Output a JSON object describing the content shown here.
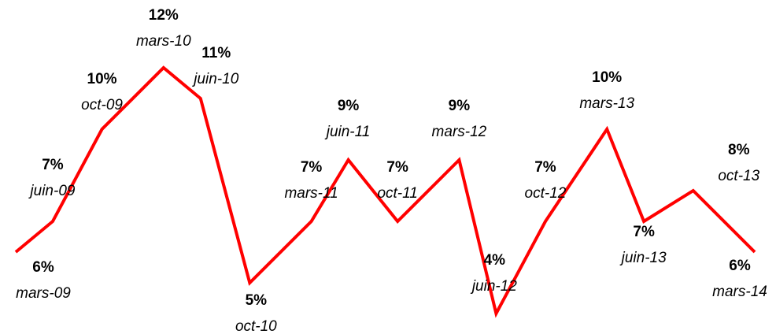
{
  "chart_data": {
    "type": "line",
    "categories": [
      "mars-09",
      "juin-09",
      "oct-09",
      "mars-10",
      "juin-10",
      "oct-10",
      "mars-11",
      "juin-11",
      "oct-11",
      "mars-12",
      "juin-12",
      "oct-12",
      "mars-13",
      "juin-13",
      "oct-13",
      "mars-14"
    ],
    "x": [
      "2009-03",
      "2009-06",
      "2009-10",
      "2010-03",
      "2010-06",
      "2010-10",
      "2011-03",
      "2011-06",
      "2011-10",
      "2012-03",
      "2012-06",
      "2012-10",
      "2013-03",
      "2013-06",
      "2013-10",
      "2014-03"
    ],
    "series": [
      {
        "color": "#ff0000",
        "values": [
          6,
          7,
          10,
          12,
          11,
          5,
          7,
          9,
          7,
          9,
          4,
          7,
          10,
          7,
          8,
          6
        ],
        "value_labels": [
          "6%",
          "7%",
          "10%",
          "12%",
          "11%",
          "5%",
          "7%",
          "9%",
          "7%",
          "9%",
          "4%",
          "7%",
          "10%",
          "7%",
          "8%",
          "6%"
        ]
      }
    ],
    "ylim": [
      4,
      12
    ]
  }
}
